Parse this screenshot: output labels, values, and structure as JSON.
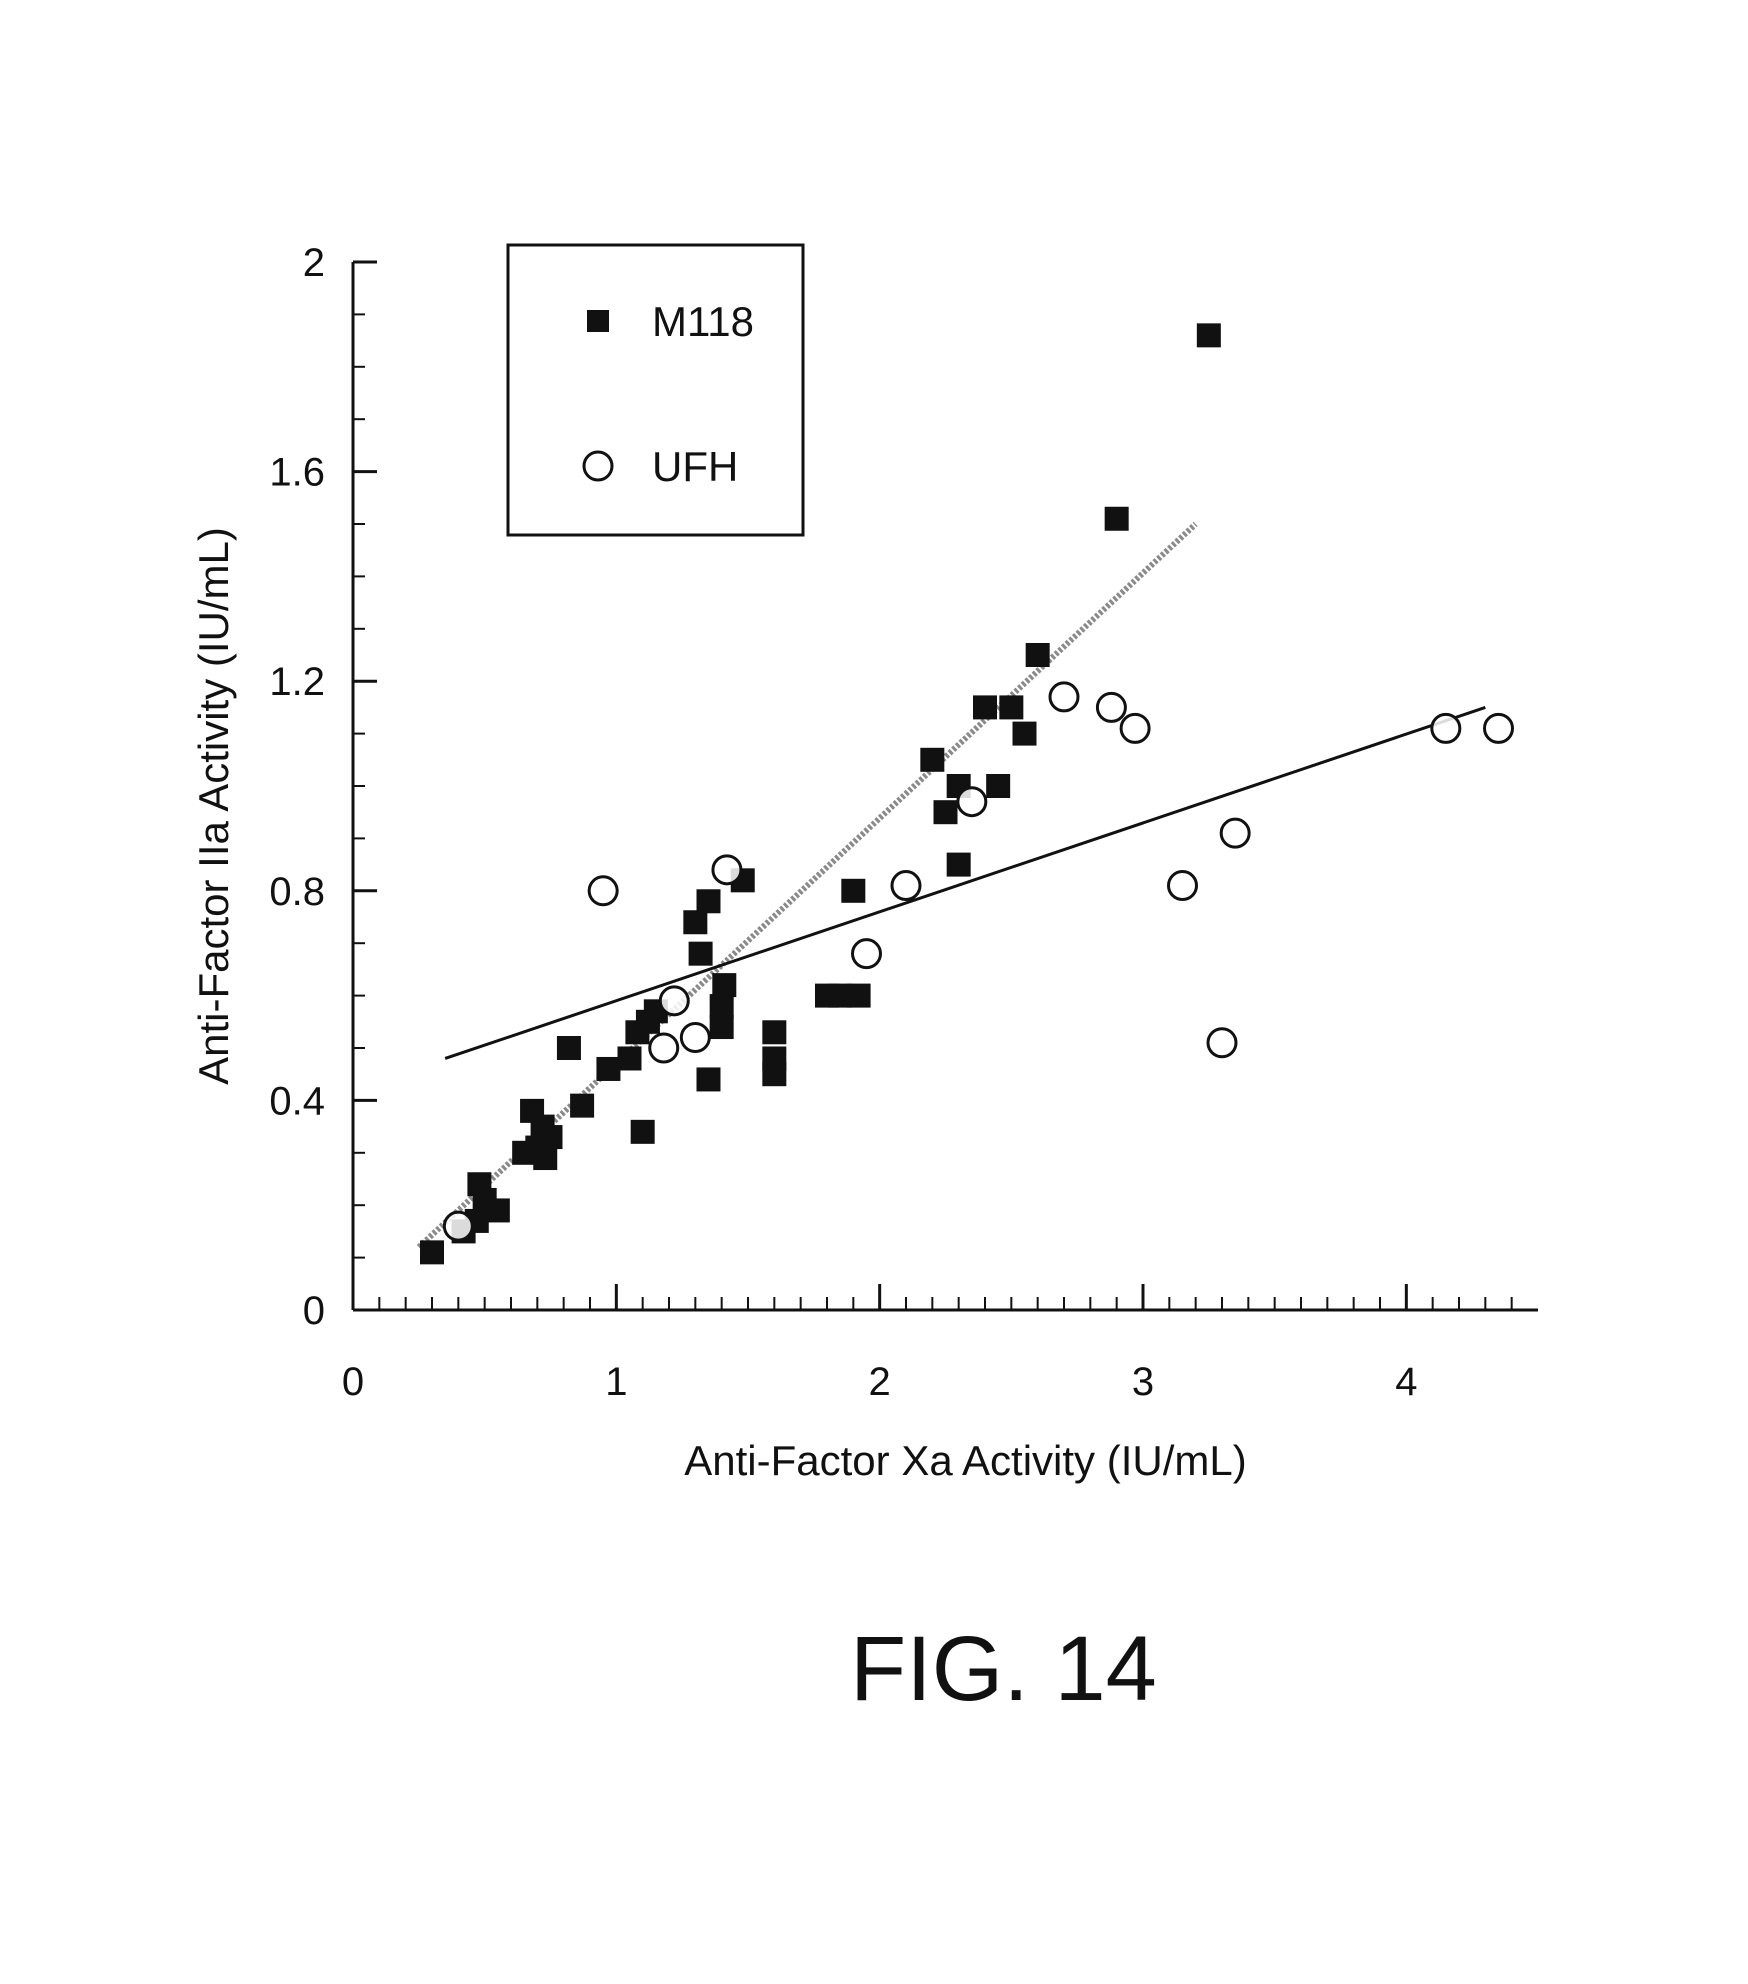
{
  "figure": {
    "label": "FIG. 14"
  },
  "chart_data": {
    "type": "scatter",
    "xlabel": "Anti-Factor Xa Activity (IU/mL)",
    "ylabel": "Anti-Factor IIa Activity (IU/mL)",
    "xlim": [
      0,
      4.5
    ],
    "ylim": [
      0,
      2
    ],
    "x_ticks": [
      "0",
      "1",
      "2",
      "3",
      "4"
    ],
    "y_ticks": [
      "0",
      "0.4",
      "0.8",
      "1.2",
      "1.6",
      "2"
    ],
    "grid": false,
    "legend_position": "top-left",
    "series": [
      {
        "name": "M118",
        "marker": "filled-square",
        "color": "#111111",
        "points": [
          [
            0.3,
            0.11
          ],
          [
            0.42,
            0.15
          ],
          [
            0.47,
            0.17
          ],
          [
            0.48,
            0.24
          ],
          [
            0.5,
            0.21
          ],
          [
            0.55,
            0.19
          ],
          [
            0.65,
            0.3
          ],
          [
            0.68,
            0.38
          ],
          [
            0.7,
            0.31
          ],
          [
            0.72,
            0.35
          ],
          [
            0.73,
            0.29
          ],
          [
            0.75,
            0.33
          ],
          [
            0.82,
            0.5
          ],
          [
            0.87,
            0.39
          ],
          [
            0.97,
            0.46
          ],
          [
            1.05,
            0.48
          ],
          [
            1.08,
            0.53
          ],
          [
            1.1,
            0.34
          ],
          [
            1.12,
            0.55
          ],
          [
            1.15,
            0.57
          ],
          [
            1.3,
            0.74
          ],
          [
            1.32,
            0.68
          ],
          [
            1.35,
            0.78
          ],
          [
            1.35,
            0.44
          ],
          [
            1.4,
            0.54
          ],
          [
            1.4,
            0.58
          ],
          [
            1.41,
            0.62
          ],
          [
            1.48,
            0.82
          ],
          [
            1.6,
            0.45
          ],
          [
            1.6,
            0.48
          ],
          [
            1.6,
            0.53
          ],
          [
            1.8,
            0.6
          ],
          [
            1.85,
            0.6
          ],
          [
            1.92,
            0.6
          ],
          [
            1.9,
            0.8
          ],
          [
            2.2,
            1.05
          ],
          [
            2.25,
            0.95
          ],
          [
            2.3,
            1.0
          ],
          [
            2.3,
            0.85
          ],
          [
            2.4,
            1.15
          ],
          [
            2.45,
            1.0
          ],
          [
            2.5,
            1.15
          ],
          [
            2.55,
            1.1
          ],
          [
            2.6,
            1.25
          ],
          [
            2.9,
            1.51
          ],
          [
            3.25,
            1.86
          ]
        ]
      },
      {
        "name": "UFH",
        "marker": "open-circle",
        "color": "#111111",
        "points": [
          [
            0.4,
            0.16
          ],
          [
            0.95,
            0.8
          ],
          [
            1.18,
            0.5
          ],
          [
            1.22,
            0.59
          ],
          [
            1.3,
            0.52
          ],
          [
            1.42,
            0.84
          ],
          [
            1.95,
            0.68
          ],
          [
            2.1,
            0.81
          ],
          [
            2.35,
            0.97
          ],
          [
            2.7,
            1.17
          ],
          [
            2.88,
            1.15
          ],
          [
            2.97,
            1.11
          ],
          [
            3.15,
            0.81
          ],
          [
            3.3,
            0.51
          ],
          [
            3.35,
            0.91
          ],
          [
            4.15,
            1.11
          ],
          [
            4.35,
            1.11
          ]
        ]
      }
    ],
    "fit_lines": [
      {
        "series": "M118",
        "style": "dotted-gray",
        "from": [
          0.25,
          0.12
        ],
        "to": [
          3.2,
          1.5
        ]
      },
      {
        "series": "UFH",
        "style": "solid-black",
        "from": [
          0.35,
          0.48
        ],
        "to": [
          4.3,
          1.15
        ]
      }
    ]
  }
}
